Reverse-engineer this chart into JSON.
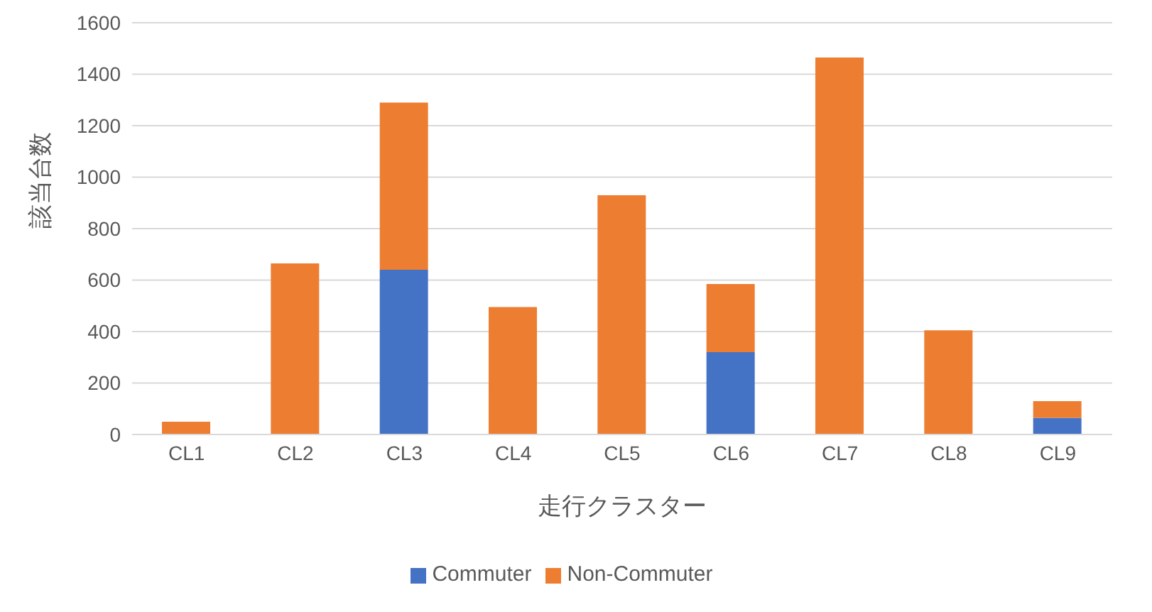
{
  "chart_data": {
    "type": "bar",
    "stacked": true,
    "xlabel": "走行クラスター",
    "ylabel": "該当台数",
    "categories": [
      "CL1",
      "CL2",
      "CL3",
      "CL4",
      "CL5",
      "CL6",
      "CL7",
      "CL8",
      "CL9"
    ],
    "series": [
      {
        "name": "Commuter",
        "color": "#4472c4",
        "values": [
          0,
          0,
          640,
          0,
          0,
          320,
          0,
          0,
          65
        ]
      },
      {
        "name": "Non-Commuter",
        "color": "#ed7d31",
        "values": [
          50,
          665,
          650,
          495,
          930,
          265,
          1465,
          405,
          65
        ]
      }
    ],
    "ylim": [
      0,
      1600
    ],
    "yticks": [
      0,
      200,
      400,
      600,
      800,
      1000,
      1200,
      1400,
      1600
    ],
    "grid": "y",
    "legend": "bottom"
  }
}
